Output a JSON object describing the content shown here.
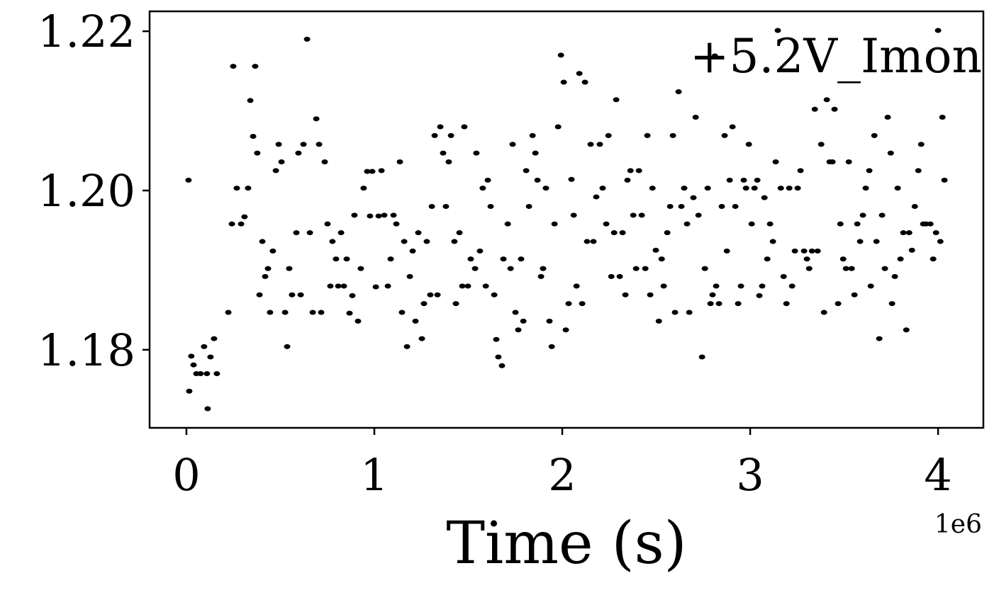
{
  "chart_data": {
    "type": "scatter",
    "annotation": "+5.2V_Imon",
    "x_label": "Time (s)",
    "x_offset_label": "1e6",
    "xlim": [
      -196000,
      4241000
    ],
    "ylim": [
      1.1702,
      1.2225
    ],
    "xticks": [
      0,
      {
        "value": 1000000,
        "label": "1"
      },
      {
        "value": 2000000,
        "label": "2"
      },
      {
        "value": 3000000,
        "label": "3"
      },
      {
        "value": 4000000,
        "label": "4"
      }
    ],
    "yticks": [
      1.18,
      {
        "value": 1.2,
        "label": "1.20"
      },
      1.22
    ],
    "grid": false,
    "color": "#000000",
    "x": [
      11000,
      15000,
      26000,
      38000,
      53000,
      75000,
      94000,
      109000,
      113000,
      128000,
      147000,
      162000,
      223000,
      242000,
      249000,
      268000,
      291000,
      309000,
      328000,
      340000,
      355000,
      366000,
      377000,
      389000,
      404000,
      419000,
      434000,
      445000,
      460000,
      476000,
      491000,
      506000,
      525000,
      536000,
      547000,
      562000,
      585000,
      596000,
      608000,
      623000,
      642000,
      657000,
      672000,
      691000,
      706000,
      717000,
      736000,
      751000,
      766000,
      777000,
      796000,
      808000,
      823000,
      838000,
      853000,
      868000,
      883000,
      894000,
      913000,
      928000,
      943000,
      962000,
      977000,
      989000,
      1008000,
      1023000,
      1038000,
      1053000,
      1072000,
      1087000,
      1102000,
      1117000,
      1136000,
      1147000,
      1159000,
      1174000,
      1189000,
      1204000,
      1219000,
      1234000,
      1253000,
      1264000,
      1279000,
      1298000,
      1306000,
      1321000,
      1336000,
      1351000,
      1366000,
      1381000,
      1396000,
      1408000,
      1426000,
      1434000,
      1453000,
      1468000,
      1479000,
      1498000,
      1513000,
      1536000,
      1543000,
      1562000,
      1577000,
      1593000,
      1604000,
      1619000,
      1638000,
      1649000,
      1660000,
      1679000,
      1687000,
      1710000,
      1725000,
      1736000,
      1751000,
      1766000,
      1781000,
      1793000,
      1808000,
      1823000,
      1842000,
      1857000,
      1868000,
      1887000,
      1898000,
      1913000,
      1932000,
      1944000,
      1959000,
      1978000,
      1993000,
      2008000,
      2019000,
      2034000,
      2049000,
      2061000,
      2076000,
      2091000,
      2106000,
      2121000,
      2132000,
      2151000,
      2166000,
      2181000,
      2200000,
      2215000,
      2234000,
      2246000,
      2261000,
      2276000,
      2287000,
      2306000,
      2321000,
      2336000,
      2347000,
      2363000,
      2378000,
      2393000,
      2408000,
      2423000,
      2442000,
      2453000,
      2468000,
      2480000,
      2498000,
      2514000,
      2529000,
      2540000,
      2559000,
      2574000,
      2589000,
      2600000,
      2619000,
      2634000,
      2649000,
      2664000,
      2676000,
      2698000,
      2710000,
      2725000,
      2744000,
      2759000,
      2774000,
      2789000,
      2800000,
      2812000,
      2819000,
      2834000,
      2849000,
      2864000,
      2876000,
      2891000,
      2906000,
      2921000,
      2936000,
      2951000,
      2966000,
      2978000,
      2993000,
      3008000,
      3023000,
      3038000,
      3049000,
      3064000,
      3076000,
      3091000,
      3106000,
      3121000,
      3136000,
      3147000,
      3163000,
      3178000,
      3193000,
      3208000,
      3223000,
      3238000,
      3253000,
      3268000,
      3287000,
      3302000,
      3314000,
      3329000,
      3344000,
      3359000,
      3378000,
      3393000,
      3408000,
      3423000,
      3438000,
      3449000,
      3468000,
      3480000,
      3495000,
      3510000,
      3525000,
      3540000,
      3555000,
      3570000,
      3585000,
      3600000,
      3615000,
      3634000,
      3642000,
      3661000,
      3672000,
      3687000,
      3702000,
      3717000,
      3732000,
      3748000,
      3755000,
      3770000,
      3785000,
      3800000,
      3815000,
      3831000,
      3846000,
      3861000,
      3876000,
      3895000,
      3910000,
      3921000,
      3936000,
      3959000,
      3974000,
      3989000,
      4000000,
      4012000,
      4023000,
      4034000
    ],
    "values": [
      1.2013,
      1.1748,
      1.1792,
      1.1781,
      1.177,
      1.177,
      1.1804,
      1.177,
      1.1726,
      1.1791,
      1.1814,
      1.177,
      1.1847,
      1.1958,
      1.2156,
      1.2003,
      1.1958,
      1.1967,
      1.2003,
      1.2113,
      1.2068,
      1.2156,
      1.2047,
      1.1869,
      1.1936,
      1.1892,
      1.1902,
      1.1847,
      1.1924,
      1.2025,
      1.2058,
      1.2036,
      1.1847,
      1.1804,
      1.1902,
      1.1869,
      1.1947,
      1.2047,
      1.1869,
      1.2058,
      1.219,
      1.1947,
      1.1847,
      1.209,
      1.2058,
      1.1847,
      1.2036,
      1.1958,
      1.188,
      1.1936,
      1.1914,
      1.188,
      1.1947,
      1.188,
      1.1914,
      1.1846,
      1.1868,
      1.1969,
      1.1836,
      1.1902,
      1.2003,
      1.2024,
      1.1968,
      1.2024,
      1.1879,
      1.1968,
      1.2025,
      1.1969,
      1.188,
      1.1914,
      1.1969,
      1.1958,
      1.2036,
      1.1847,
      1.1936,
      1.1804,
      1.1892,
      1.1924,
      1.1836,
      1.1947,
      1.1814,
      1.1858,
      1.1936,
      1.1869,
      1.198,
      1.2069,
      1.1869,
      1.208,
      1.2047,
      1.198,
      1.2036,
      1.2069,
      1.1936,
      1.1858,
      1.1947,
      1.188,
      1.208,
      1.188,
      1.1914,
      1.1902,
      1.2047,
      1.1924,
      1.2003,
      1.188,
      1.2013,
      1.198,
      1.1869,
      1.1813,
      1.1791,
      1.178,
      1.1914,
      1.1958,
      1.1902,
      1.2058,
      1.1847,
      1.1825,
      1.1914,
      1.1836,
      1.2025,
      1.198,
      1.2069,
      1.2047,
      1.2013,
      1.1892,
      1.1902,
      1.2003,
      1.1836,
      1.1804,
      1.1958,
      1.208,
      1.217,
      1.2136,
      1.1825,
      1.1858,
      1.2014,
      1.1969,
      1.188,
      1.2147,
      1.1858,
      1.2136,
      1.1936,
      1.2058,
      1.1936,
      1.1992,
      1.2058,
      1.2003,
      1.1958,
      1.2069,
      1.1892,
      1.1947,
      1.2114,
      1.1892,
      1.1947,
      1.1869,
      1.2013,
      1.2025,
      1.1969,
      1.1902,
      1.2025,
      1.1969,
      1.1902,
      1.2069,
      1.1869,
      1.2003,
      1.1925,
      1.1836,
      1.1914,
      1.188,
      1.1947,
      1.198,
      1.2069,
      1.1847,
      1.2124,
      1.198,
      1.2003,
      1.1958,
      1.1847,
      1.1991,
      1.2092,
      1.1969,
      1.1791,
      1.1902,
      1.2003,
      1.1858,
      1.1869,
      1.2169,
      1.188,
      1.1858,
      1.198,
      1.2069,
      1.1924,
      1.2013,
      1.208,
      1.198,
      1.1858,
      1.188,
      1.2013,
      1.2003,
      1.2058,
      1.1958,
      1.2003,
      1.2013,
      1.1868,
      1.188,
      1.1991,
      1.1914,
      1.1958,
      1.1936,
      1.2036,
      1.2201,
      1.2003,
      1.1892,
      1.1858,
      1.2003,
      1.188,
      1.1924,
      1.2003,
      1.2025,
      1.1924,
      1.1914,
      1.1902,
      1.1924,
      1.2102,
      1.1924,
      1.2058,
      1.1847,
      1.2114,
      1.2036,
      1.2036,
      1.2102,
      1.1858,
      1.1958,
      1.1914,
      1.1902,
      1.2036,
      1.1902,
      1.1869,
      1.1958,
      1.1936,
      1.1969,
      1.2003,
      1.2025,
      1.188,
      1.2069,
      1.1936,
      1.1814,
      1.1969,
      1.1902,
      1.2092,
      1.2047,
      1.1858,
      1.1892,
      1.2003,
      1.1914,
      1.1947,
      1.1825,
      1.1947,
      1.1925,
      1.198,
      1.2025,
      1.2058,
      1.1958,
      1.1958,
      1.1958,
      1.1914,
      1.1947,
      1.2201,
      1.1936,
      1.2092,
      1.2013
    ]
  }
}
